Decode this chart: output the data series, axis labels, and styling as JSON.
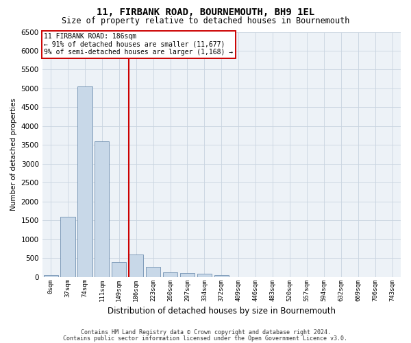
{
  "title": "11, FIRBANK ROAD, BOURNEMOUTH, BH9 1EL",
  "subtitle": "Size of property relative to detached houses in Bournemouth",
  "xlabel": "Distribution of detached houses by size in Bournemouth",
  "ylabel": "Number of detached properties",
  "footer1": "Contains HM Land Registry data © Crown copyright and database right 2024.",
  "footer2": "Contains public sector information licensed under the Open Government Licence v3.0.",
  "annotation_title": "11 FIRBANK ROAD: 186sqm",
  "annotation_line1": "← 91% of detached houses are smaller (11,677)",
  "annotation_line2": "9% of semi-detached houses are larger (1,168) →",
  "bar_labels": [
    "0sqm",
    "37sqm",
    "74sqm",
    "111sqm",
    "149sqm",
    "186sqm",
    "223sqm",
    "260sqm",
    "297sqm",
    "334sqm",
    "372sqm",
    "409sqm",
    "446sqm",
    "483sqm",
    "520sqm",
    "557sqm",
    "594sqm",
    "632sqm",
    "669sqm",
    "706sqm",
    "743sqm"
  ],
  "bar_values": [
    50,
    1600,
    5050,
    3600,
    400,
    600,
    270,
    120,
    100,
    80,
    50,
    0,
    0,
    0,
    0,
    0,
    0,
    0,
    0,
    0,
    0
  ],
  "bar_color": "#c8d8e8",
  "bar_edge_color": "#7090b0",
  "vline_color": "#cc0000",
  "vline_bin_index": 5,
  "annotation_box_color": "#cc0000",
  "ylim": [
    0,
    6500
  ],
  "yticks": [
    0,
    500,
    1000,
    1500,
    2000,
    2500,
    3000,
    3500,
    4000,
    4500,
    5000,
    5500,
    6000,
    6500
  ],
  "grid_color": "#c8d4e0",
  "background_color": "#edf2f7",
  "title_fontsize": 10,
  "subtitle_fontsize": 8.5,
  "ylabel_fontsize": 7.5,
  "xlabel_fontsize": 8.5,
  "ytick_fontsize": 7.5,
  "xtick_fontsize": 6.5,
  "annot_fontsize": 7,
  "footer_fontsize": 6
}
